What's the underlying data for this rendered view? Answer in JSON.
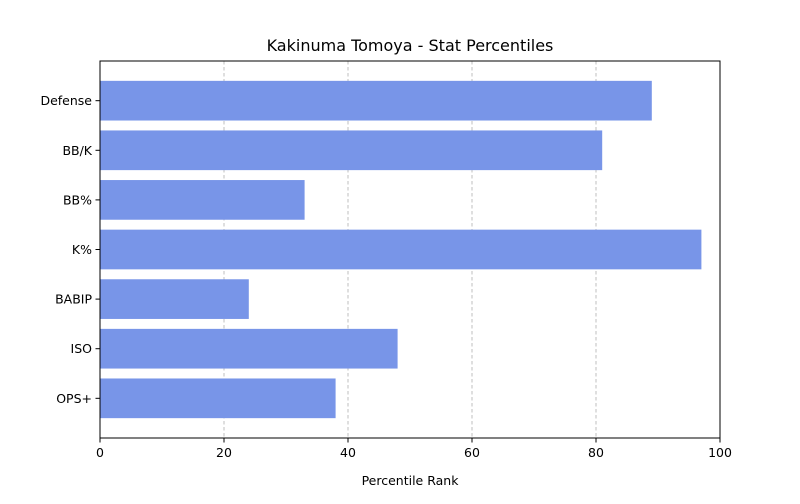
{
  "chart_data": {
    "type": "bar",
    "orientation": "horizontal",
    "title": "Kakinuma Tomoya - Stat Percentiles",
    "xlabel": "Percentile Rank",
    "ylabel": "",
    "categories": [
      "Defense",
      "BB/K",
      "BB%",
      "K%",
      "BABIP",
      "ISO",
      "OPS+"
    ],
    "values": [
      89,
      81,
      33,
      97,
      24,
      48,
      38
    ],
    "xlim": [
      0,
      100
    ],
    "xticks": [
      0,
      20,
      40,
      60,
      80,
      100
    ],
    "grid": "x-axis dashed",
    "bar_color": "#7895e8"
  }
}
